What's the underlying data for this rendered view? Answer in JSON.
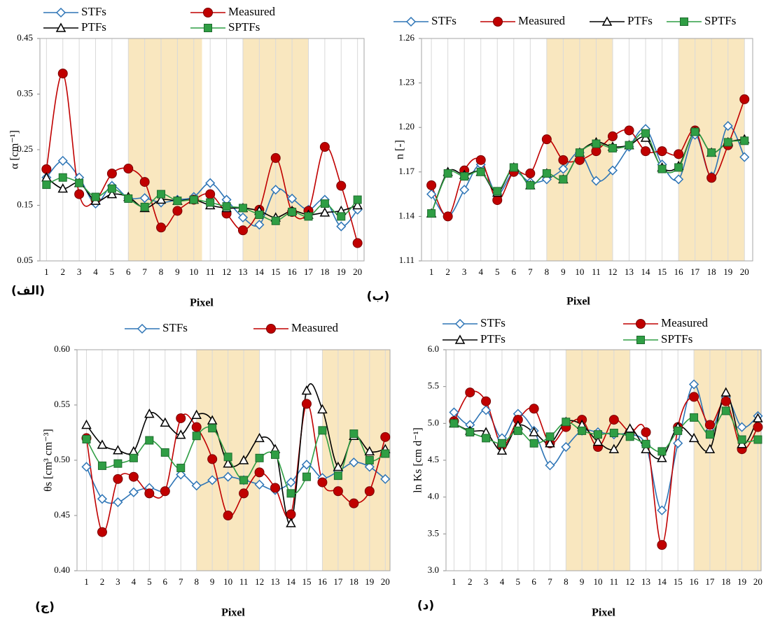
{
  "chart_data": [
    {
      "type": "line",
      "y_label": "α [cm⁻¹]",
      "x_label": "Pixel",
      "panel_label": "(الف)",
      "x": [
        1,
        2,
        3,
        4,
        5,
        6,
        7,
        8,
        9,
        10,
        11,
        12,
        13,
        14,
        15,
        16,
        17,
        18,
        19,
        20
      ],
      "xlim": [
        0.6,
        20.4
      ],
      "ylim": [
        0.05,
        0.45
      ],
      "yticks": [
        0.05,
        0.15,
        0.25,
        0.35,
        0.45
      ],
      "grid": "x",
      "shaded": [
        [
          6,
          10.5
        ],
        [
          13,
          17
        ]
      ],
      "shade_color": "#f9e7bf",
      "series": [
        {
          "name": "STFs",
          "color": "#2e75b6",
          "marker": "diamond",
          "values": [
            0.2,
            0.23,
            0.2,
            0.153,
            0.185,
            0.163,
            0.163,
            0.155,
            0.16,
            0.165,
            0.19,
            0.16,
            0.128,
            0.115,
            0.178,
            0.162,
            0.142,
            0.16,
            0.112,
            0.142
          ]
        },
        {
          "name": "Measured",
          "color": "#c00000",
          "marker": "circle",
          "values": [
            0.215,
            0.387,
            0.17,
            0.16,
            0.207,
            0.216,
            0.192,
            0.11,
            0.14,
            0.16,
            0.17,
            0.135,
            0.105,
            0.142,
            0.235,
            0.138,
            0.14,
            0.255,
            0.185,
            0.082
          ]
        },
        {
          "name": "PTFs",
          "color": "#000000",
          "marker": "triangle",
          "values": [
            0.2,
            0.18,
            0.19,
            0.158,
            0.17,
            0.165,
            0.145,
            0.16,
            0.158,
            0.16,
            0.15,
            0.145,
            0.145,
            0.14,
            0.128,
            0.14,
            0.133,
            0.137,
            0.14,
            0.15
          ]
        },
        {
          "name": "SPTFs",
          "color": "#2f9e44",
          "marker": "square",
          "values": [
            0.187,
            0.2,
            0.19,
            0.165,
            0.18,
            0.162,
            0.147,
            0.17,
            0.158,
            0.16,
            0.155,
            0.148,
            0.145,
            0.133,
            0.122,
            0.138,
            0.13,
            0.153,
            0.13,
            0.16
          ]
        }
      ]
    },
    {
      "type": "line",
      "y_label": "n [-]",
      "x_label": "Pixel",
      "panel_label": "(ب)",
      "x": [
        1,
        2,
        3,
        4,
        5,
        6,
        7,
        8,
        9,
        10,
        11,
        12,
        13,
        14,
        15,
        16,
        17,
        18,
        19,
        20
      ],
      "xlim": [
        0.4,
        20.5
      ],
      "ylim": [
        1.11,
        1.26
      ],
      "yticks": [
        1.11,
        1.14,
        1.17,
        {
          "value": 1.2,
          "label": "1.20"
        },
        1.23,
        1.26
      ],
      "grid": "x",
      "shaded": [
        [
          8,
          12
        ],
        [
          16,
          20
        ]
      ],
      "shade_color": "#f9e7bf",
      "series": [
        {
          "name": "STFs",
          "color": "#2e75b6",
          "marker": "diamond",
          "values": [
            1.155,
            1.14,
            1.158,
            1.175,
            1.155,
            1.17,
            1.163,
            1.165,
            1.172,
            1.183,
            1.164,
            1.171,
            1.187,
            1.199,
            1.175,
            1.165,
            1.195,
            1.167,
            1.201,
            1.18
          ]
        },
        {
          "name": "Measured",
          "color": "#c00000",
          "marker": "circle",
          "values": [
            1.161,
            1.14,
            1.171,
            1.178,
            1.151,
            1.17,
            1.169,
            1.192,
            1.178,
            1.178,
            1.184,
            1.194,
            1.198,
            1.184,
            1.184,
            1.182,
            1.198,
            1.166,
            1.188,
            1.219
          ]
        },
        {
          "name": "PTFs",
          "color": "#000000",
          "marker": "triangle",
          "values": [
            1.142,
            1.17,
            1.168,
            1.17,
            1.156,
            1.173,
            1.161,
            1.169,
            1.165,
            1.183,
            1.19,
            1.187,
            1.188,
            1.193,
            1.173,
            1.174,
            1.197,
            1.183,
            1.19,
            1.192
          ]
        },
        {
          "name": "SPTFs",
          "color": "#2f9e44",
          "marker": "square",
          "values": [
            1.142,
            1.169,
            1.167,
            1.17,
            1.157,
            1.173,
            1.161,
            1.169,
            1.165,
            1.183,
            1.189,
            1.186,
            1.188,
            1.196,
            1.172,
            1.173,
            1.197,
            1.183,
            1.19,
            1.191
          ]
        }
      ]
    },
    {
      "type": "line",
      "y_label": "θs [cm³ cm⁻³]",
      "x_label": "Pixel",
      "panel_label": "(ج)",
      "x": [
        1,
        2,
        3,
        4,
        5,
        6,
        7,
        8,
        9,
        10,
        11,
        12,
        13,
        14,
        15,
        16,
        17,
        18,
        19,
        20
      ],
      "xlim": [
        0.4,
        20.3
      ],
      "ylim": [
        0.4,
        0.6
      ],
      "yticks": [
        {
          "value": 0.4,
          "label": "0.40"
        },
        0.45,
        {
          "value": 0.5,
          "label": "0.50"
        },
        0.55,
        {
          "value": 0.6,
          "label": "0.60"
        }
      ],
      "grid": "x",
      "shaded": [
        [
          8,
          12
        ],
        [
          16,
          20.3
        ]
      ],
      "shade_color": "#f9e7bf",
      "series": [
        {
          "name": "STFs",
          "color": "#2e75b6",
          "marker": "diamond",
          "values": [
            0.494,
            0.465,
            0.462,
            0.471,
            0.475,
            0.472,
            0.487,
            0.477,
            0.482,
            0.485,
            0.482,
            0.478,
            0.473,
            0.48,
            0.496,
            0.484,
            0.49,
            0.498,
            0.494,
            0.483
          ]
        },
        {
          "name": "Measured",
          "color": "#c00000",
          "marker": "circle",
          "values": [
            0.52,
            0.435,
            0.483,
            0.485,
            0.47,
            0.472,
            0.538,
            0.53,
            0.501,
            0.45,
            0.47,
            0.489,
            0.475,
            0.451,
            0.551,
            0.48,
            0.472,
            0.461,
            0.472,
            0.521
          ]
        },
        {
          "color": "#000000",
          "marker": "triangle",
          "values": [
            0.532,
            0.514,
            0.509,
            0.508,
            0.542,
            0.534,
            0.523,
            0.541,
            0.536,
            0.497,
            0.5,
            0.52,
            0.51,
            0.443,
            0.563,
            0.546,
            0.494,
            0.522,
            0.508,
            0.51
          ]
        },
        {
          "color": "#2f9e44",
          "marker": "square",
          "values": [
            0.519,
            0.495,
            0.497,
            0.502,
            0.518,
            0.507,
            0.493,
            0.522,
            0.529,
            0.503,
            0.482,
            0.502,
            0.505,
            0.47,
            0.485,
            0.527,
            0.486,
            0.524,
            0.5,
            0.506
          ]
        }
      ]
    },
    {
      "type": "line",
      "y_label": "ln Ks [cm d⁻¹]",
      "x_label": "Pixel",
      "panel_label": "(د)",
      "x": [
        1,
        2,
        3,
        4,
        5,
        6,
        7,
        8,
        9,
        10,
        11,
        12,
        13,
        14,
        15,
        16,
        17,
        18,
        19,
        20
      ],
      "xlim": [
        0.5,
        20.2
      ],
      "ylim": [
        3,
        6
      ],
      "yticks": [
        {
          "value": 3,
          "label": "3.0"
        },
        3.5,
        {
          "value": 4,
          "label": "4.0"
        },
        4.5,
        {
          "value": 5,
          "label": "5.0"
        },
        5.5,
        {
          "value": 6,
          "label": "6.0"
        }
      ],
      "grid": "x",
      "shaded": [
        [
          8,
          12
        ],
        [
          16,
          20.2
        ]
      ],
      "shade_color": "#f9e7bf",
      "series": [
        {
          "name": "STFs",
          "color": "#2e75b6",
          "marker": "diamond",
          "values": [
            5.15,
            4.98,
            5.18,
            4.8,
            5.13,
            4.9,
            4.43,
            4.68,
            4.9,
            4.88,
            4.85,
            4.85,
            4.7,
            3.82,
            4.73,
            5.53,
            4.9,
            5.35,
            4.95,
            5.1
          ]
        },
        {
          "name": "Measured",
          "color": "#c00000",
          "marker": "circle",
          "values": [
            5.03,
            5.42,
            5.3,
            4.7,
            5.05,
            5.2,
            4.73,
            4.95,
            5.05,
            4.68,
            5.05,
            4.88,
            4.88,
            3.35,
            4.95,
            5.36,
            4.98,
            5.3,
            4.65,
            4.95
          ]
        },
        {
          "name": "PTFs",
          "color": "#000000",
          "marker": "triangle",
          "values": [
            5.0,
            4.9,
            4.88,
            4.63,
            4.97,
            4.88,
            4.73,
            5.02,
            4.98,
            4.75,
            4.65,
            4.93,
            4.65,
            4.53,
            4.95,
            4.8,
            4.65,
            5.42,
            4.72,
            5.07
          ]
        },
        {
          "name": "SPTFs",
          "color": "#2f9e44",
          "marker": "square",
          "values": [
            5.0,
            4.88,
            4.8,
            4.73,
            4.9,
            4.73,
            4.82,
            5.02,
            4.9,
            4.85,
            4.87,
            4.82,
            4.72,
            4.62,
            4.9,
            5.08,
            4.85,
            5.17,
            4.78,
            4.78
          ]
        }
      ]
    }
  ]
}
